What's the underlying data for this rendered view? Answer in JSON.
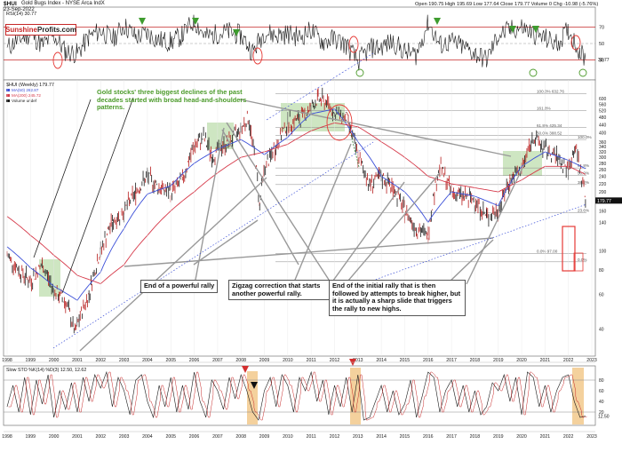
{
  "header": {
    "symbol": "$HUI",
    "name": "Gold Bugs Index - NYSE Arca IndX",
    "date": "23-Sep-2022",
    "quote": "Open 190.75  High 195.69  Low 177.64  Close 179.77  Volume 0  Chg -10.98 (-5.76%)",
    "brand_part1": "Sunshine",
    "brand_part2": "Profits.com"
  },
  "colors": {
    "candle": "#1a1a1a",
    "ma50": "#3b4fd8",
    "ma200": "#d63a4a",
    "overbought_band": "#c62828",
    "highlight_green": "#b9dca8",
    "highlight_orange": "#f2c98c",
    "note_green": "#4b9a2a"
  },
  "annotations": {
    "green_note": "Gold stocks' three biggest declines of the past decades started with broad head-and-shoulders patterns.",
    "box1": "End of a powerful rally",
    "box2": "Zigzag correction that starts another powerful rally.",
    "box3": "End of the initial rally that is then followed by attempts to break higher, but it is actually a sharp slide that triggers the rally to new highs."
  },
  "chart_data": [
    {
      "type": "line",
      "title": "RSI(14) 30.77",
      "value_label": "30.77",
      "yticks": [
        70,
        50,
        30
      ],
      "ylim": [
        10,
        90
      ],
      "reference_lines": [
        70,
        30
      ],
      "x": [
        1998,
        1998.5,
        1999,
        1999.5,
        2000,
        2000.5,
        2001,
        2001.5,
        2002,
        2002.5,
        2003,
        2003.5,
        2004,
        2004.5,
        2005,
        2005.5,
        2006,
        2006.5,
        2007,
        2007.5,
        2008,
        2008.5,
        2009,
        2009.5,
        2010,
        2010.5,
        2011,
        2011.5,
        2012,
        2012.5,
        2013,
        2013.5,
        2014,
        2014.5,
        2015,
        2015.5,
        2016,
        2016.5,
        2017,
        2017.5,
        2018,
        2018.5,
        2019,
        2019.5,
        2020,
        2020.5,
        2021,
        2021.5,
        2022,
        2022.5,
        2022.73
      ],
      "values": [
        45,
        55,
        62,
        48,
        60,
        40,
        38,
        58,
        66,
        55,
        72,
        58,
        62,
        54,
        52,
        60,
        78,
        58,
        62,
        64,
        60,
        40,
        64,
        60,
        62,
        58,
        66,
        52,
        56,
        48,
        28,
        44,
        46,
        52,
        40,
        36,
        76,
        48,
        52,
        46,
        38,
        30,
        60,
        66,
        70,
        62,
        56,
        50,
        66,
        40,
        30.77
      ]
    },
    {
      "type": "line",
      "title": "$HUI (Weekly) 179.77",
      "value_label": "179.77",
      "legend": [
        {
          "label": "MA(50) 262.87",
          "color": "#3b4fd8"
        },
        {
          "label": "MA(200) 245.72",
          "color": "#d63a4a"
        },
        {
          "label": "Volume undef",
          "color": "#1a1a1a"
        }
      ],
      "log_scale": true,
      "ylim": [
        30,
        700
      ],
      "yticks": [
        40,
        60,
        80,
        100,
        140,
        160,
        180,
        200,
        220,
        240,
        260,
        280,
        300,
        320,
        340,
        360,
        400,
        440,
        480,
        520,
        560,
        600
      ],
      "xticks": [
        1998,
        1999,
        2000,
        2001,
        2002,
        2003,
        2004,
        2005,
        2006,
        2007,
        2008,
        2009,
        2010,
        2011,
        2012,
        2013,
        2014,
        2015,
        2016,
        2017,
        2018,
        2019,
        2020,
        2021,
        2022,
        2023
      ],
      "fib_levels": [
        {
          "label": "100.0% 632.76",
          "value": 632.76
        },
        {
          "label": "161.8%",
          "value": 520
        },
        {
          "label": "61.8% 425.34",
          "value": 425.34
        },
        {
          "label": "50.0% 388.52",
          "value": 388.52
        },
        {
          "label": "100.0%",
          "value": 370
        },
        {
          "label": "61.8%",
          "value": 265
        },
        {
          "label": "50.0%",
          "value": 243
        },
        {
          "label": "38.2%",
          "value": 218
        },
        {
          "label": "23.6%",
          "value": 157
        },
        {
          "label": "0.0% 97.00",
          "value": 97.0
        },
        {
          "label": "0.0%",
          "value": 88
        }
      ],
      "price": {
        "x": [
          1998,
          1998.5,
          1999,
          1999.5,
          2000,
          2000.5,
          2000.9,
          2001.5,
          2002,
          2002.5,
          2003,
          2003.5,
          2004,
          2004.5,
          2005,
          2005.5,
          2006,
          2006.4,
          2006.8,
          2007,
          2007.5,
          2008,
          2008.3,
          2008.8,
          2009,
          2009.5,
          2010,
          2010.5,
          2011,
          2011.3,
          2011.7,
          2012,
          2012.5,
          2013,
          2013.5,
          2014,
          2014.5,
          2015,
          2015.5,
          2016,
          2016.5,
          2017,
          2017.5,
          2018,
          2018.5,
          2019,
          2019.5,
          2020,
          2020.5,
          2021,
          2021.5,
          2022,
          2022.3,
          2022.73
        ],
        "values": [
          95,
          80,
          70,
          85,
          62,
          55,
          38,
          60,
          100,
          140,
          160,
          200,
          240,
          210,
          200,
          230,
          340,
          380,
          300,
          330,
          360,
          420,
          480,
          170,
          260,
          340,
          450,
          470,
          540,
          600,
          570,
          500,
          480,
          300,
          220,
          240,
          210,
          160,
          130,
          120,
          270,
          200,
          190,
          180,
          150,
          160,
          230,
          260,
          380,
          330,
          300,
          260,
          340,
          179.77
        ]
      },
      "ma50": {
        "x": [
          1998,
          1999,
          2000,
          2001,
          2002,
          2003,
          2004,
          2005,
          2006,
          2007,
          2008,
          2009,
          2010,
          2011,
          2012,
          2013,
          2014,
          2015,
          2016,
          2017,
          2018,
          2019,
          2020,
          2021,
          2022,
          2022.73
        ],
        "values": [
          105,
          82,
          66,
          56,
          78,
          130,
          195,
          215,
          280,
          330,
          370,
          310,
          380,
          500,
          530,
          360,
          240,
          200,
          140,
          200,
          190,
          170,
          270,
          320,
          290,
          262.87
        ]
      },
      "ma200": {
        "x": [
          1998,
          1999,
          2000,
          2001,
          2002,
          2003,
          2004,
          2005,
          2006,
          2007,
          2008,
          2009,
          2010,
          2011,
          2012,
          2013,
          2014,
          2015,
          2016,
          2017,
          2018,
          2019,
          2020,
          2021,
          2022,
          2022.73
        ],
        "values": [
          150,
          120,
          95,
          75,
          68,
          85,
          120,
          160,
          200,
          250,
          300,
          320,
          350,
          410,
          450,
          430,
          360,
          300,
          240,
          220,
          210,
          200,
          230,
          270,
          270,
          245.72
        ]
      }
    },
    {
      "type": "line",
      "title": "Slow STO %K(14) %D(3) 12.50, 12.62",
      "value_label": "12.50",
      "yticks": [
        80,
        60,
        40,
        20
      ],
      "ylim": [
        0,
        100
      ],
      "reference_lines": [
        80,
        20
      ],
      "x": [
        1998,
        1998.25,
        1998.5,
        1998.75,
        1999,
        1999.25,
        1999.5,
        1999.75,
        2000,
        2000.25,
        2000.5,
        2000.75,
        2001,
        2001.25,
        2001.5,
        2001.75,
        2002,
        2002.25,
        2002.5,
        2002.75,
        2003,
        2003.25,
        2003.5,
        2003.75,
        2004,
        2004.25,
        2004.5,
        2004.75,
        2005,
        2005.25,
        2005.5,
        2005.75,
        2006,
        2006.25,
        2006.5,
        2006.75,
        2007,
        2007.25,
        2007.5,
        2007.75,
        2008,
        2008.25,
        2008.5,
        2008.75,
        2009,
        2009.25,
        2009.5,
        2009.75,
        2010,
        2010.25,
        2010.5,
        2010.75,
        2011,
        2011.25,
        2011.5,
        2011.75,
        2012,
        2012.25,
        2012.5,
        2012.75,
        2013,
        2013.25,
        2013.5,
        2013.75,
        2014,
        2014.25,
        2014.5,
        2014.75,
        2015,
        2015.25,
        2015.5,
        2015.75,
        2016,
        2016.25,
        2016.5,
        2016.75,
        2017,
        2017.25,
        2017.5,
        2017.75,
        2018,
        2018.25,
        2018.5,
        2018.75,
        2019,
        2019.25,
        2019.5,
        2019.75,
        2020,
        2020.25,
        2020.5,
        2020.75,
        2021,
        2021.25,
        2021.5,
        2021.75,
        2022,
        2022.25,
        2022.5,
        2022.73
      ],
      "values": [
        30,
        70,
        20,
        85,
        15,
        80,
        35,
        90,
        10,
        60,
        25,
        75,
        20,
        85,
        40,
        90,
        65,
        95,
        30,
        85,
        60,
        15,
        80,
        90,
        40,
        10,
        70,
        30,
        85,
        20,
        70,
        25,
        95,
        40,
        10,
        80,
        60,
        25,
        85,
        45,
        90,
        60,
        20,
        5,
        60,
        85,
        30,
        90,
        70,
        20,
        85,
        60,
        95,
        40,
        80,
        15,
        70,
        30,
        85,
        20,
        90,
        5,
        10,
        40,
        70,
        20,
        60,
        15,
        35,
        80,
        10,
        50,
        95,
        85,
        20,
        60,
        80,
        30,
        70,
        20,
        60,
        15,
        30,
        75,
        60,
        90,
        40,
        85,
        15,
        95,
        85,
        30,
        70,
        20,
        60,
        85,
        90,
        40,
        10,
        12.5
      ]
    }
  ]
}
